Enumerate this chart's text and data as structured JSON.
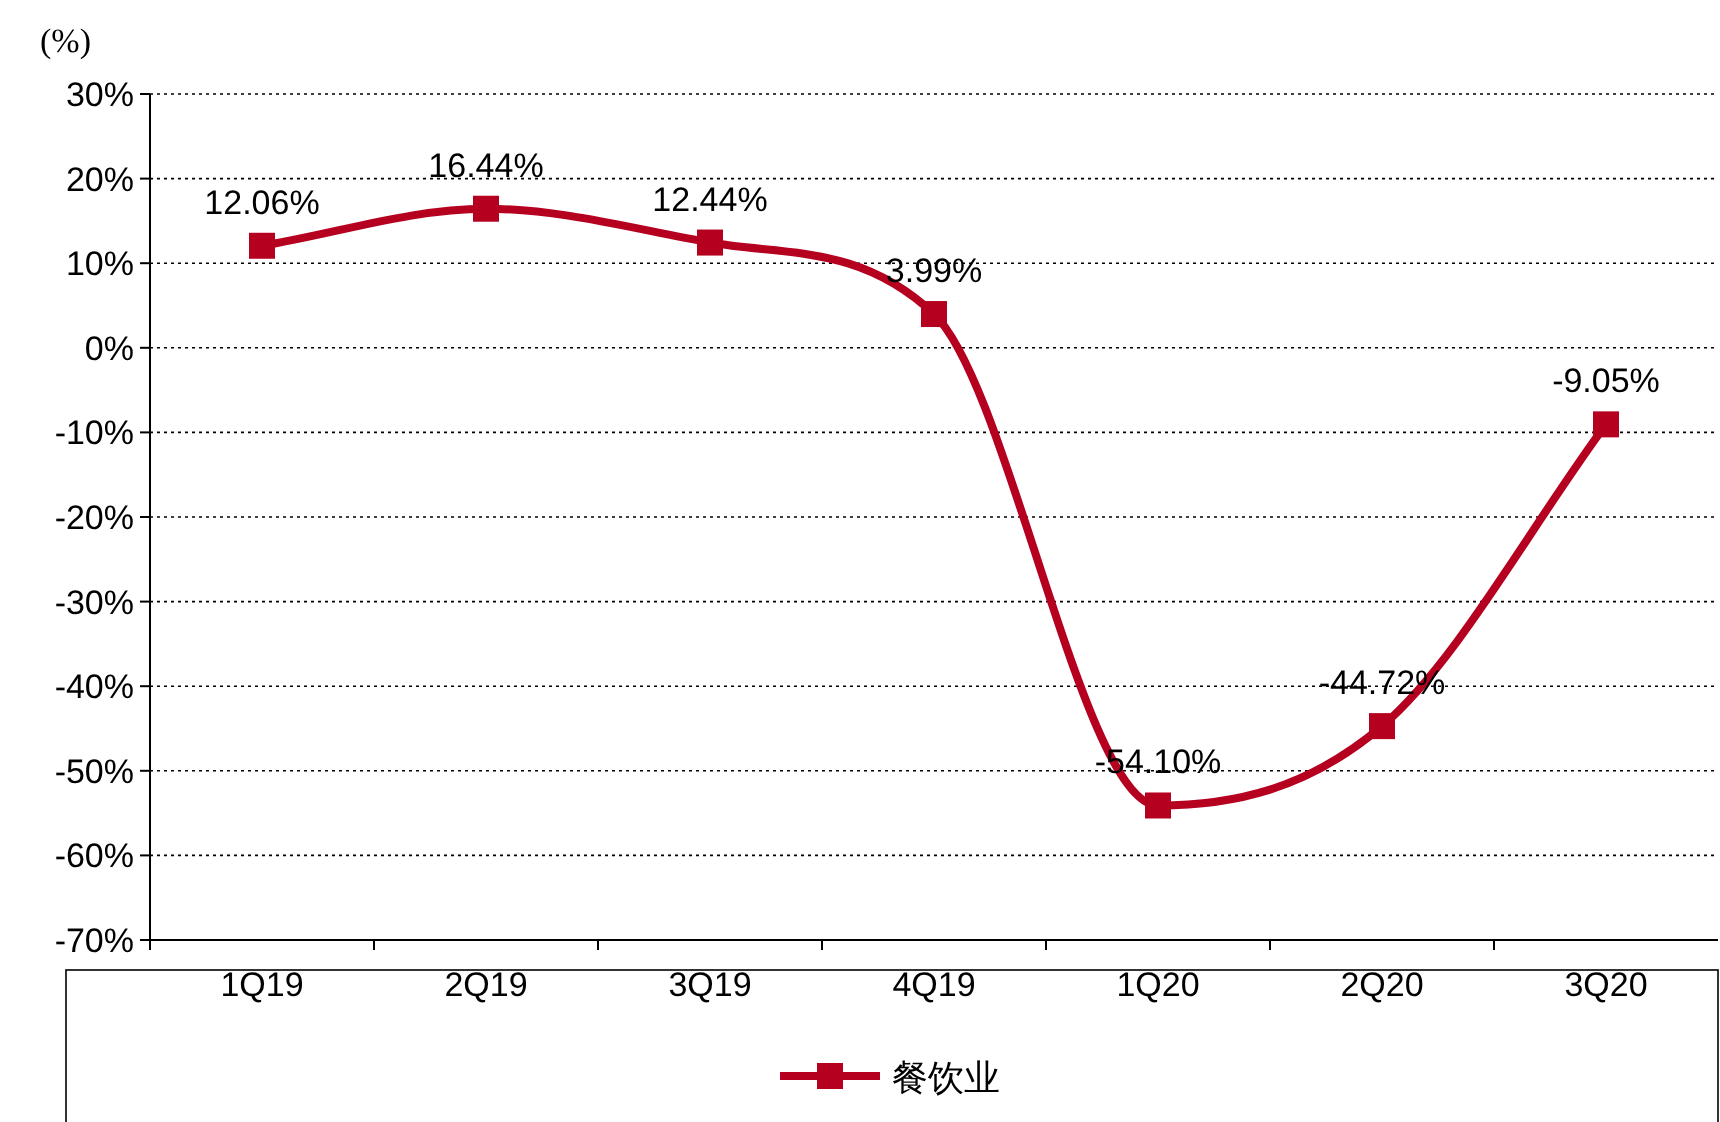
{
  "chart_data": {
    "type": "line",
    "ylabel": "(%)",
    "categories": [
      "1Q19",
      "2Q19",
      "3Q19",
      "4Q19",
      "1Q20",
      "2Q20",
      "3Q20"
    ],
    "series": [
      {
        "name": "餐饮业",
        "color": "#b5001f",
        "values": [
          12.06,
          16.44,
          12.44,
          3.99,
          -54.1,
          -44.72,
          -9.05
        ],
        "value_labels": [
          "12.06%",
          "16.44%",
          "12.44%",
          "3.99%",
          "-54.10%",
          "-44.72%",
          "-9.05%"
        ]
      }
    ],
    "ylim": [
      -70,
      30
    ],
    "yticks": [
      {
        "value": -70,
        "label": "-70%"
      },
      {
        "value": -60,
        "label": "-60%"
      },
      {
        "value": -50,
        "label": "-50%"
      },
      {
        "value": -40,
        "label": "-40%"
      },
      {
        "value": -30,
        "label": "-30%"
      },
      {
        "value": -20,
        "label": "-20%"
      },
      {
        "value": -10,
        "label": "-10%"
      },
      {
        "value": 0,
        "label": "0%"
      },
      {
        "value": 10,
        "label": "10%"
      },
      {
        "value": 20,
        "label": "20%"
      },
      {
        "value": 30,
        "label": "30%"
      }
    ],
    "grid": "y",
    "legend": "bottom",
    "marker": "square",
    "line_style": "solid"
  }
}
